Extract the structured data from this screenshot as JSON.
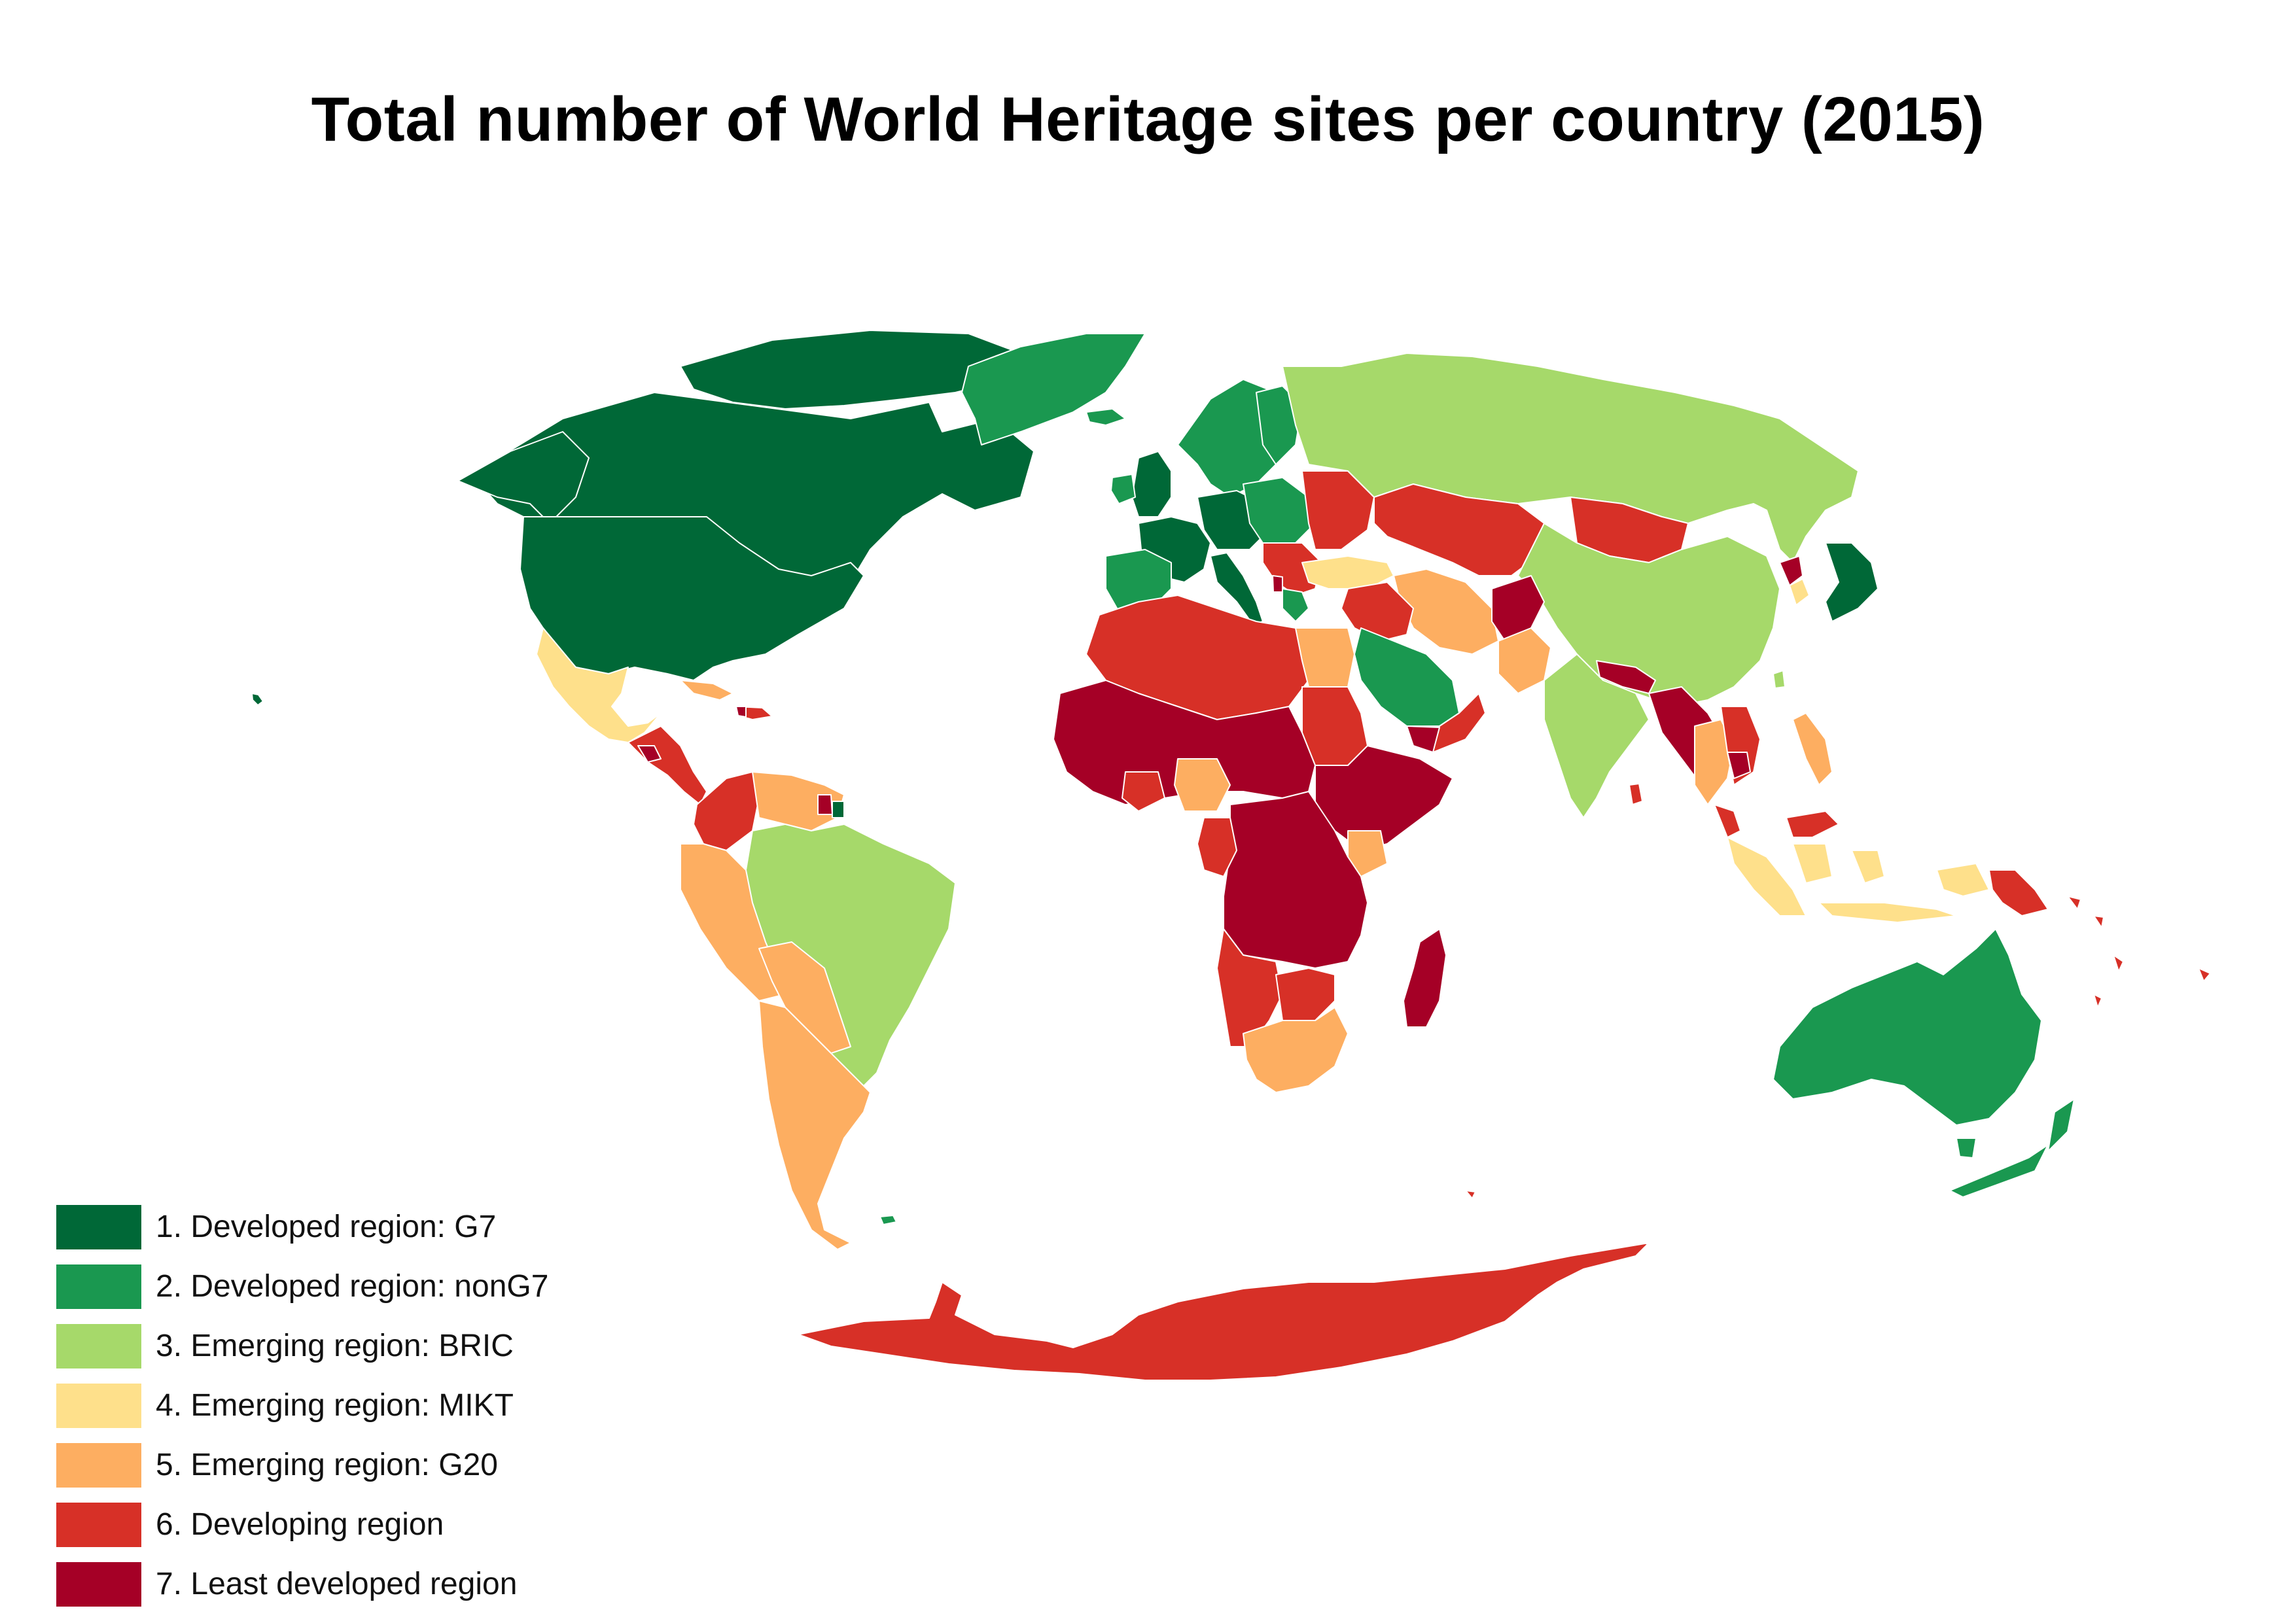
{
  "title": "Total number of World Heritage sites per country (2015)",
  "colors": {
    "g7": "#006837",
    "nong7": "#1a9850",
    "bric": "#a6d96a",
    "mikt": "#fee08b",
    "g20": "#fdae61",
    "developing": "#d73027",
    "least": "#a50026",
    "border": "#ffffff"
  },
  "legend": [
    {
      "label": "1. Developed region: G7",
      "color": "#006837"
    },
    {
      "label": "2. Developed region: nonG7",
      "color": "#1a9850"
    },
    {
      "label": "3. Emerging region: BRIC",
      "color": "#a6d96a"
    },
    {
      "label": "4. Emerging region: MIKT",
      "color": "#fee08b"
    },
    {
      "label": "5. Emerging region: G20",
      "color": "#fdae61"
    },
    {
      "label": "6. Developing region",
      "color": "#d73027"
    },
    {
      "label": "7. Least developed region",
      "color": "#a50026"
    }
  ]
}
